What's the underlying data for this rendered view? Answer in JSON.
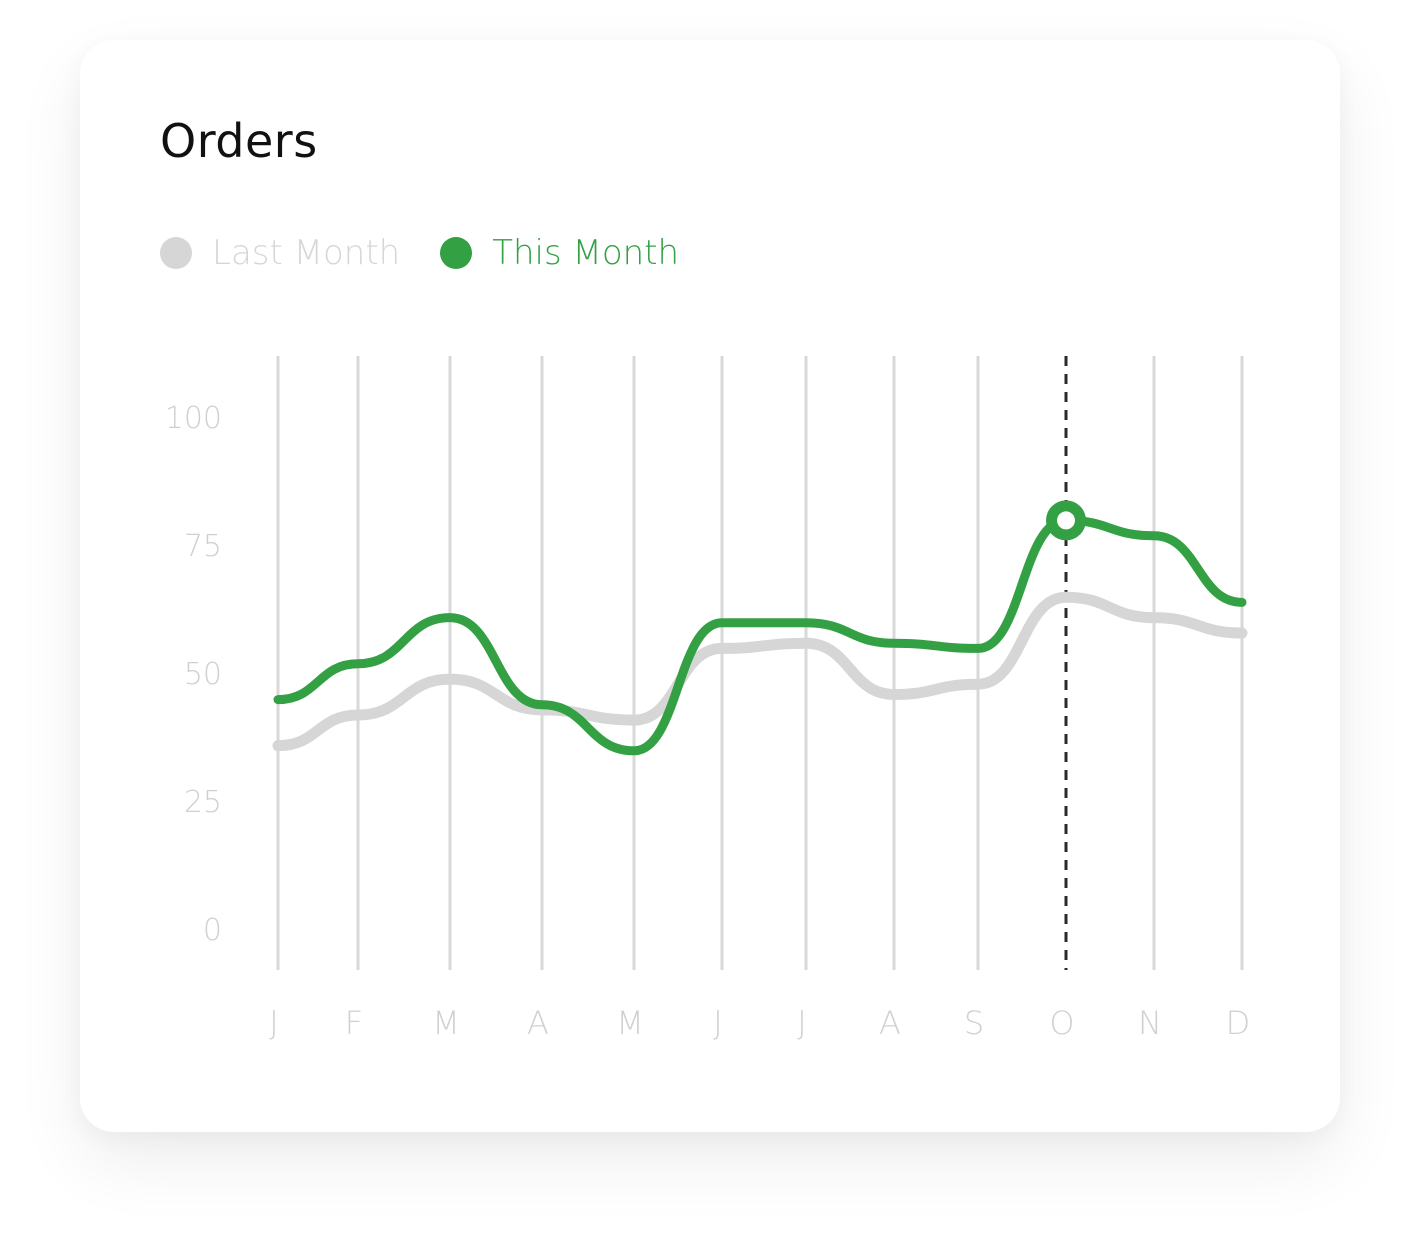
{
  "card": {
    "title": "Orders"
  },
  "legend": [
    {
      "label": "Last Month",
      "color": "#d6d6d6"
    },
    {
      "label": "This Month",
      "color": "#33a043"
    }
  ],
  "chart_data": {
    "type": "line",
    "title": "Orders",
    "categories": [
      "J",
      "F",
      "M",
      "A",
      "M",
      "J",
      "J",
      "A",
      "S",
      "O",
      "N",
      "D"
    ],
    "ylim": [
      0,
      100
    ],
    "yticks": [
      0,
      25,
      50,
      75,
      100
    ],
    "series": [
      {
        "name": "Last Month",
        "color": "#d6d6d6",
        "values": [
          36,
          42,
          49,
          43,
          41,
          55,
          56,
          46,
          48,
          65,
          61,
          58
        ]
      },
      {
        "name": "This Month",
        "color": "#33a043",
        "values": [
          45,
          52,
          61,
          44,
          35,
          60,
          60,
          56,
          55,
          80,
          77,
          64
        ]
      }
    ],
    "highlight": {
      "category_index": 9,
      "series": "This Month",
      "value": 80
    },
    "grid": "vertical",
    "legend_position": "top-left"
  }
}
